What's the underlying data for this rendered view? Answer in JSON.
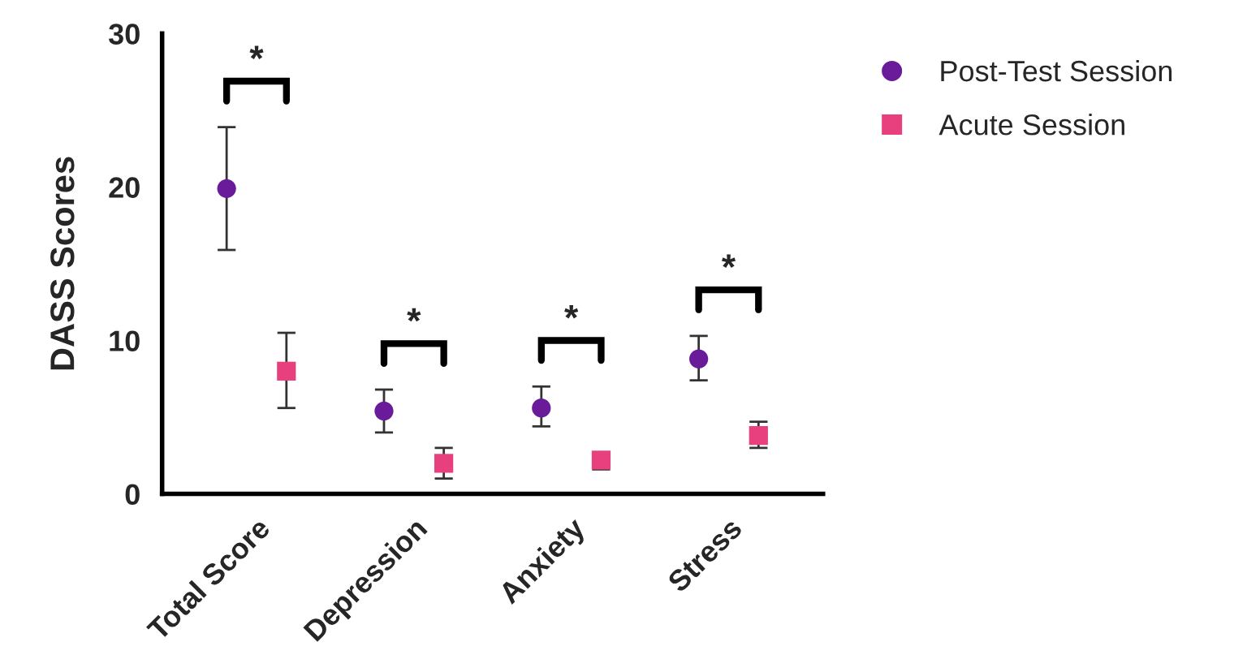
{
  "chart_data": {
    "type": "scatter",
    "ylabel": "DASS Scores",
    "categories": [
      "Total Score",
      "Depression",
      "Anxiety",
      "Stress"
    ],
    "series": [
      {
        "name": "Post-Test Session",
        "color": "#6a1b9a",
        "marker": "circle",
        "values": [
          19.9,
          5.4,
          5.6,
          8.8
        ],
        "errors": [
          [
            15.9,
            23.9
          ],
          [
            4.0,
            6.8
          ],
          [
            4.4,
            7.0
          ],
          [
            7.4,
            10.3
          ]
        ]
      },
      {
        "name": "Acute Session",
        "color": "#e8407f",
        "marker": "square",
        "values": [
          8.0,
          2.0,
          2.2,
          3.8
        ],
        "errors": [
          [
            5.6,
            10.5
          ],
          [
            1.0,
            3.0
          ],
          [
            1.6,
            2.6
          ],
          [
            3.0,
            4.7
          ]
        ]
      }
    ],
    "annotations": [
      "*",
      "*",
      "*",
      "*"
    ],
    "ylim": [
      0,
      30
    ],
    "yticks": [
      0,
      10,
      20,
      30
    ],
    "grid": false,
    "legend": "top right"
  }
}
